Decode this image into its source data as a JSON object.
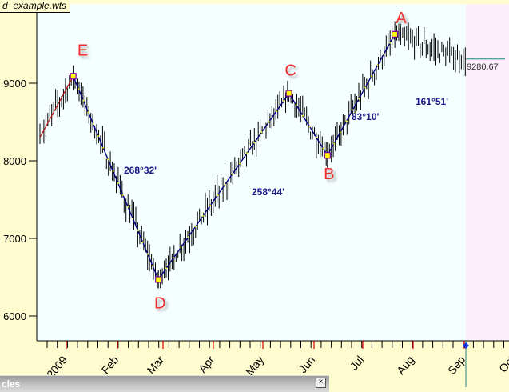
{
  "window": {
    "file_name": "d_example.wts",
    "panel_title": "cles",
    "close_icon": "close-icon"
  },
  "colors": {
    "plot_bg": "#f5ffff",
    "future_bg": "#fdeefc",
    "frame_bg": "#fffdd0",
    "pivot_label": "#f03030",
    "angle_label": "#1a1a8c",
    "trend_line": "#000080",
    "dash": "#ffff00",
    "last_price_line": "#2a8080"
  },
  "chart_data": {
    "type": "bar",
    "title": "",
    "ylim": [
      5700,
      9900
    ],
    "yticks": [
      6000,
      7000,
      8000,
      9000
    ],
    "ytick_labels": [
      "6000",
      "7000",
      "8000",
      "9000"
    ],
    "xtick_labels": [
      "2009",
      "Feb",
      "Mar",
      "Apr",
      "May",
      "Jun",
      "Jul",
      "Aug",
      "Sep",
      "Oct"
    ],
    "last_price": 9280.67,
    "last_price_label": "9280.67",
    "pivots": [
      {
        "label": "E",
        "date": "2009-01-06",
        "value": 9090
      },
      {
        "label": "D",
        "date": "2009-03-09",
        "value": 6470
      },
      {
        "label": "C",
        "date": "2009-06-12",
        "value": 8870
      },
      {
        "label": "B",
        "date": "2009-07-10",
        "value": 8070
      },
      {
        "label": "A",
        "date": "2009-08-28",
        "value": 9630
      }
    ],
    "start_value": 8300,
    "angles": [
      {
        "label": "268°32'",
        "leg": "E-D"
      },
      {
        "label": "258°44'",
        "leg": "D-C"
      },
      {
        "label": "83°10'",
        "leg": "C-B"
      },
      {
        "label": "161°51'",
        "leg": "B-A"
      }
    ],
    "grid": false
  }
}
